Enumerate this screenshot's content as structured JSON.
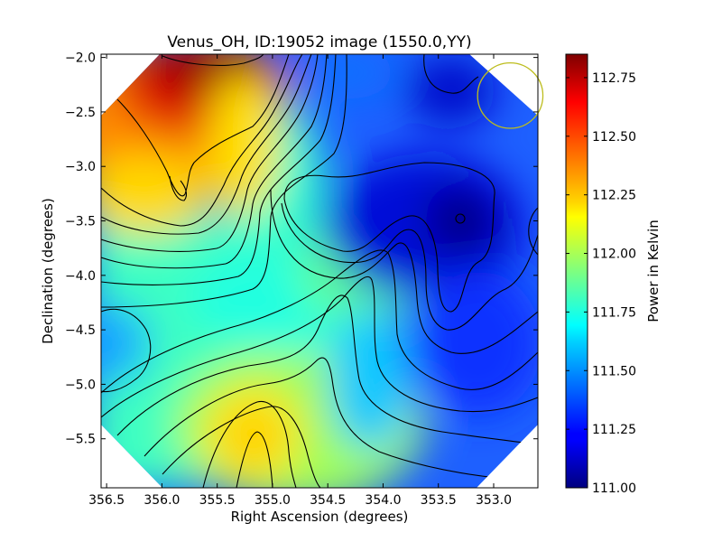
{
  "chart_data": {
    "type": "heatmap",
    "title": "Venus_OH, ID:19052 image (1550.0,YY)",
    "xlabel": "Right Ascension (degrees)",
    "ylabel": "Declination (degrees)",
    "xlim": [
      356.55,
      352.6
    ],
    "ylim": [
      -5.95,
      -1.97
    ],
    "x_inverted": true,
    "x_ticks": [
      356.5,
      356.0,
      355.5,
      355.0,
      354.5,
      354.0,
      353.5,
      353.0
    ],
    "x_tick_labels": [
      "356.5",
      "356.0",
      "355.5",
      "355.0",
      "354.5",
      "354.0",
      "353.5",
      "353.0"
    ],
    "y_ticks": [
      -2.0,
      -2.5,
      -3.0,
      -3.5,
      -4.0,
      -4.5,
      -5.0,
      -5.5
    ],
    "y_tick_labels": [
      "−2.0",
      "−2.5",
      "−3.0",
      "−3.5",
      "−4.0",
      "−4.5",
      "−5.0",
      "−5.5"
    ],
    "colorbar": {
      "label": "Power in Kelvin",
      "range": [
        111.0,
        112.85
      ],
      "ticks": [
        111.0,
        111.25,
        111.5,
        111.75,
        112.0,
        112.25,
        112.5,
        112.75
      ],
      "tick_labels": [
        "111.00",
        "111.25",
        "111.50",
        "111.75",
        "112.00",
        "112.25",
        "112.50",
        "112.75"
      ],
      "colormap": "jet"
    },
    "field_extrema": {
      "maximum": {
        "ra": 355.55,
        "dec": -2.05,
        "value": 112.85
      },
      "secondary_maximum": {
        "ra": 355.05,
        "dec": -5.5,
        "value": 112.25
      },
      "minimum": {
        "ra": 353.2,
        "dec": -3.45,
        "value": 111.0
      }
    },
    "beam_circle": {
      "ra": 352.85,
      "dec": -2.35,
      "radius_deg": 0.3,
      "color": "#bdbd1e"
    },
    "contour_color": "#000000"
  }
}
